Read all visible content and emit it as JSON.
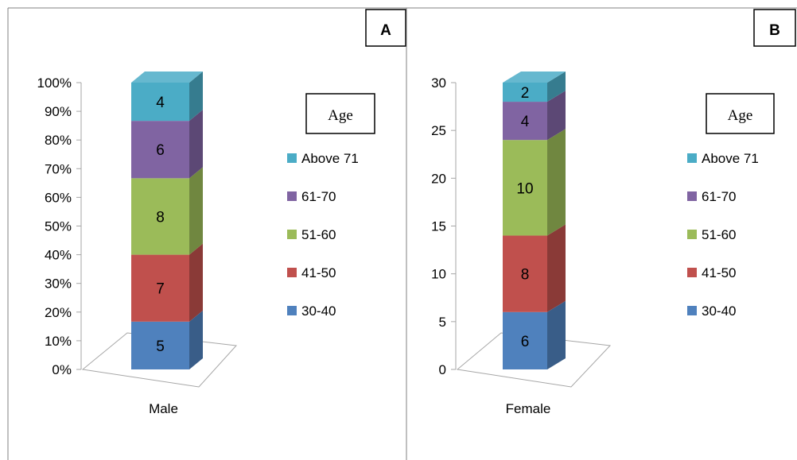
{
  "chart_data": [
    {
      "type": "bar",
      "panel_label": "A",
      "categories": [
        "Male"
      ],
      "stacked": true,
      "percent_stacked": true,
      "ylim": [
        0,
        100
      ],
      "y_ticks": [
        "0%",
        "10%",
        "20%",
        "30%",
        "40%",
        "50%",
        "60%",
        "70%",
        "80%",
        "90%",
        "100%"
      ],
      "legend_title": "Age",
      "legend_position": "right",
      "grid": false,
      "series": [
        {
          "name": "30-40",
          "color": "#4F81BD",
          "values": [
            5
          ]
        },
        {
          "name": "41-50",
          "color": "#C0504D",
          "values": [
            7
          ]
        },
        {
          "name": "51-60",
          "color": "#9BBB59",
          "values": [
            8
          ]
        },
        {
          "name": "61-70",
          "color": "#8064A2",
          "values": [
            6
          ]
        },
        {
          "name": "Above 71",
          "color": "#4BACC6",
          "values": [
            4
          ]
        }
      ]
    },
    {
      "type": "bar",
      "panel_label": "B",
      "categories": [
        "Female"
      ],
      "stacked": true,
      "percent_stacked": false,
      "ylim": [
        0,
        30
      ],
      "y_ticks": [
        "0",
        "5",
        "10",
        "15",
        "20",
        "25",
        "30"
      ],
      "legend_title": "Age",
      "legend_position": "right",
      "grid": false,
      "series": [
        {
          "name": "30-40",
          "color": "#4F81BD",
          "values": [
            6
          ]
        },
        {
          "name": "41-50",
          "color": "#C0504D",
          "values": [
            8
          ]
        },
        {
          "name": "51-60",
          "color": "#9BBB59",
          "values": [
            10
          ]
        },
        {
          "name": "61-70",
          "color": "#8064A2",
          "values": [
            4
          ]
        },
        {
          "name": "Above 71",
          "color": "#4BACC6",
          "values": [
            2
          ]
        }
      ]
    }
  ]
}
